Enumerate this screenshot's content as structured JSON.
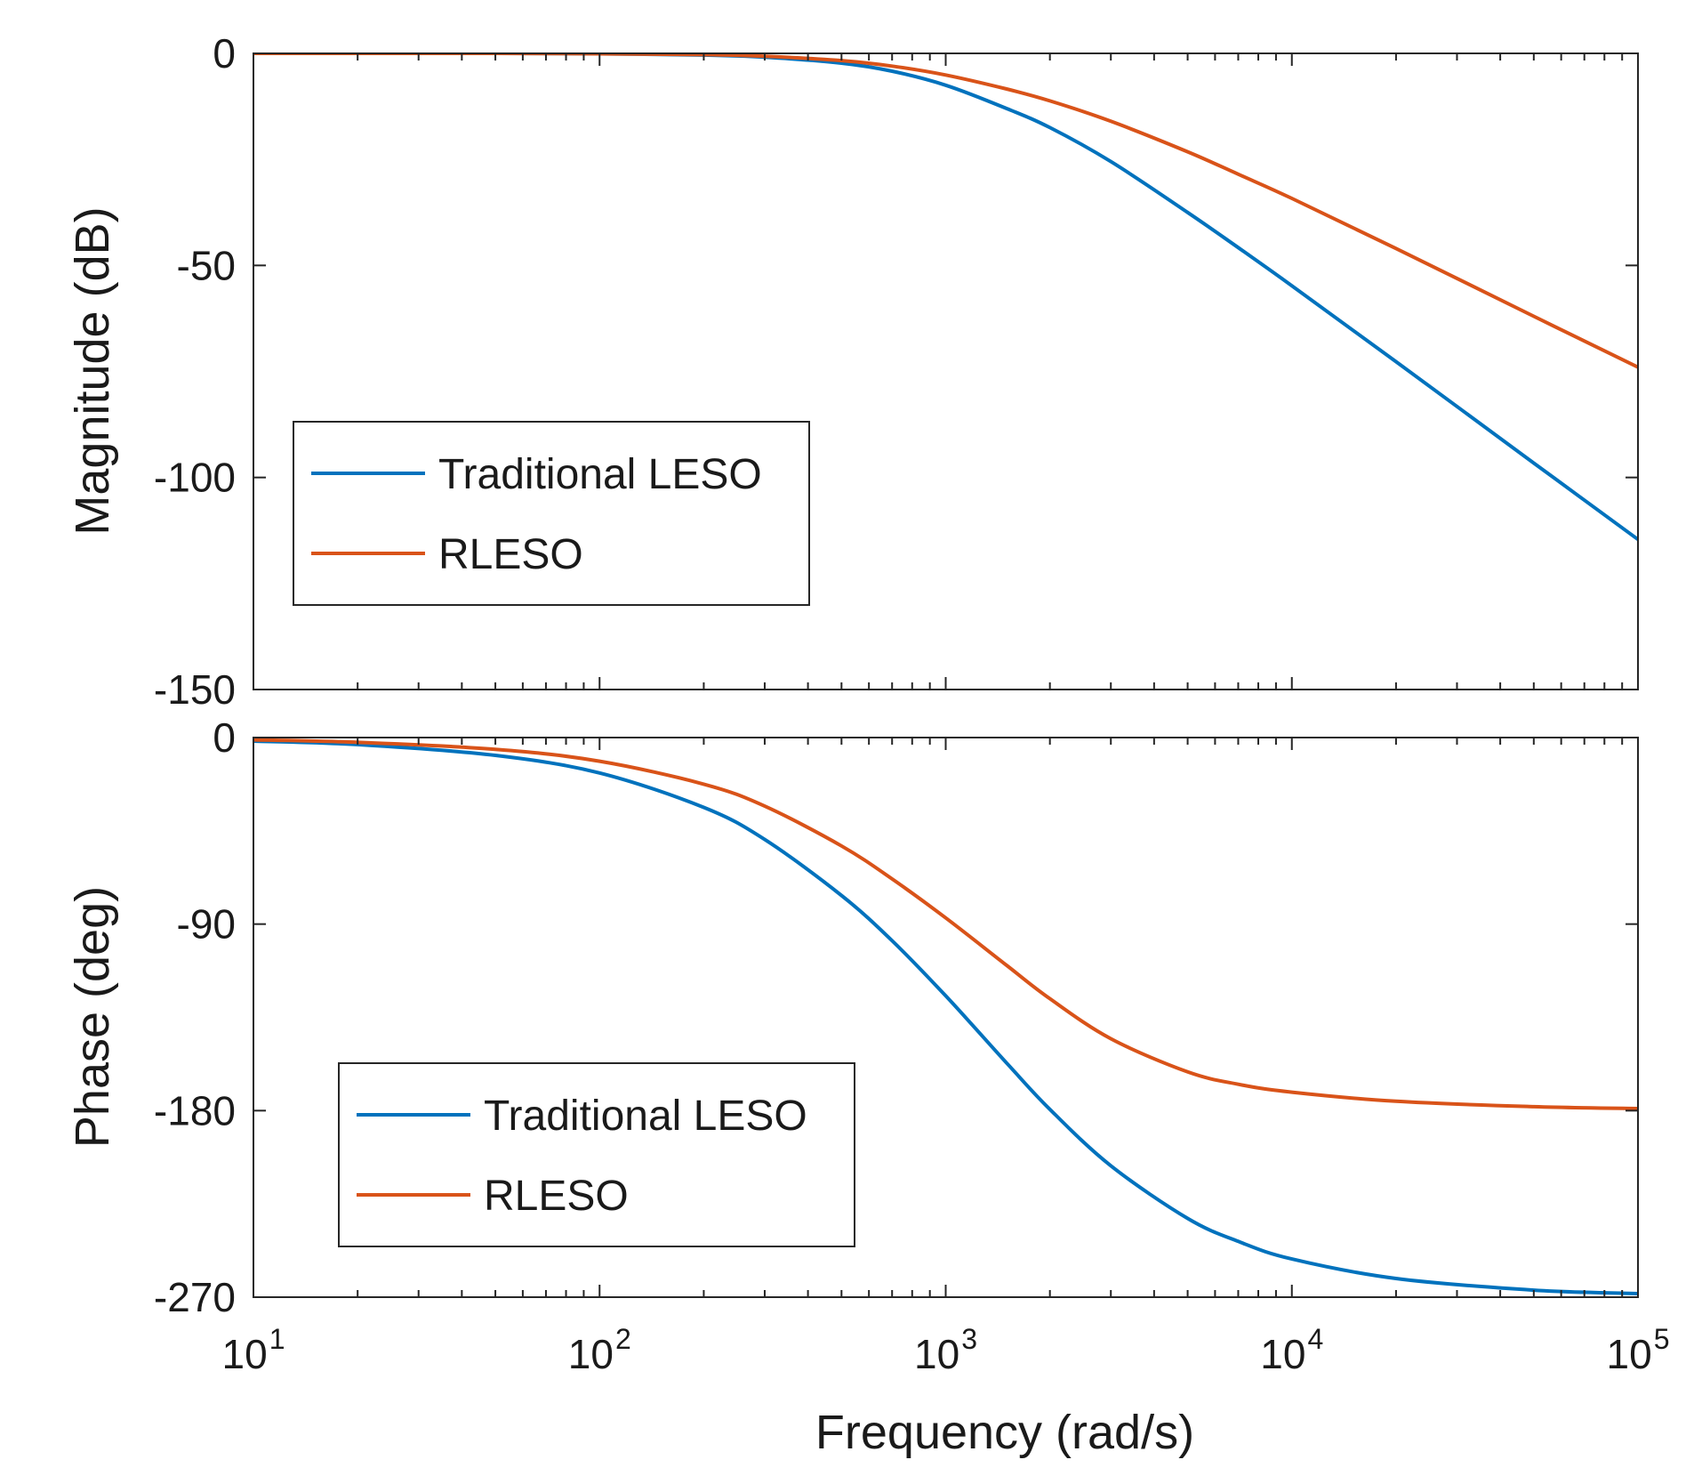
{
  "chart_data": [
    {
      "type": "line",
      "name": "magnitude",
      "xscale": "log",
      "xlim": [
        10,
        100000
      ],
      "ylim": [
        -150,
        0
      ],
      "yticks": [
        0,
        -50,
        -100,
        -150
      ],
      "ytick_labels": [
        "0",
        "-50",
        "-100",
        "-150"
      ],
      "ylabel": "Magnitude (dB)",
      "xlabel": "",
      "grid": false,
      "legend_position": "lower-left",
      "series": [
        {
          "name": "Traditional LESO",
          "color": "#0072BD",
          "x": [
            10,
            20,
            50,
            100,
            200,
            300,
            500,
            700,
            1000,
            1500,
            2000,
            3000,
            5000,
            7000,
            10000,
            20000,
            50000,
            100000
          ],
          "y": [
            0,
            0,
            0,
            -0.1,
            -0.4,
            -0.9,
            -2.3,
            -4.2,
            -7.5,
            -13.0,
            -17.5,
            -25.5,
            -37.5,
            -45.8,
            -54.8,
            -72.7,
            -96.6,
            -114.6
          ]
        },
        {
          "name": "RLESO",
          "color": "#D95319",
          "x": [
            10,
            20,
            50,
            100,
            200,
            300,
            500,
            700,
            1000,
            1500,
            2000,
            3000,
            5000,
            7000,
            10000,
            20000,
            50000,
            100000
          ],
          "y": [
            0,
            0,
            0,
            -0.1,
            -0.3,
            -0.7,
            -1.7,
            -3.0,
            -5.1,
            -8.4,
            -11.2,
            -16.0,
            -23.2,
            -28.5,
            -34.2,
            -46.0,
            -62.0,
            -74.0
          ]
        }
      ]
    },
    {
      "type": "line",
      "name": "phase",
      "xscale": "log",
      "xlim": [
        10,
        100000
      ],
      "ylim": [
        -270,
        0
      ],
      "yticks": [
        0,
        -90,
        -180,
        -270
      ],
      "ytick_labels": [
        "0",
        "-90",
        "-180",
        "-270"
      ],
      "xticks": [
        10,
        100,
        1000,
        10000,
        100000
      ],
      "xtick_bases": [
        "10",
        "10",
        "10",
        "10",
        "10"
      ],
      "xtick_exponents": [
        "1",
        "2",
        "3",
        "4",
        "5"
      ],
      "ylabel": "Phase (deg)",
      "xlabel": "Frequency  (rad/s)",
      "grid": false,
      "legend_position": "lower-left",
      "series": [
        {
          "name": "Traditional LESO",
          "color": "#0072BD",
          "x": [
            10,
            20,
            50,
            100,
            200,
            300,
            500,
            700,
            1000,
            1500,
            2000,
            3000,
            5000,
            7000,
            10000,
            20000,
            50000,
            100000
          ],
          "y": [
            -1.7,
            -3.4,
            -8.6,
            -17.1,
            -33.7,
            -49.2,
            -76.2,
            -98.0,
            -124.6,
            -157.0,
            -179.4,
            -206.6,
            -232.0,
            -243.1,
            -251.6,
            -261.0,
            -266.6,
            -268.3
          ]
        },
        {
          "name": "RLESO",
          "color": "#D95319",
          "x": [
            10,
            20,
            50,
            100,
            200,
            300,
            500,
            700,
            1000,
            1500,
            2000,
            3000,
            5000,
            7000,
            10000,
            20000,
            50000,
            100000
          ],
          "y": [
            -1.1,
            -2.3,
            -5.7,
            -11.4,
            -22.5,
            -33.1,
            -52.3,
            -68.2,
            -87.0,
            -109.9,
            -126.0,
            -145.3,
            -161.3,
            -167.3,
            -171.1,
            -175.5,
            -178.1,
            -179.0
          ]
        }
      ]
    }
  ]
}
